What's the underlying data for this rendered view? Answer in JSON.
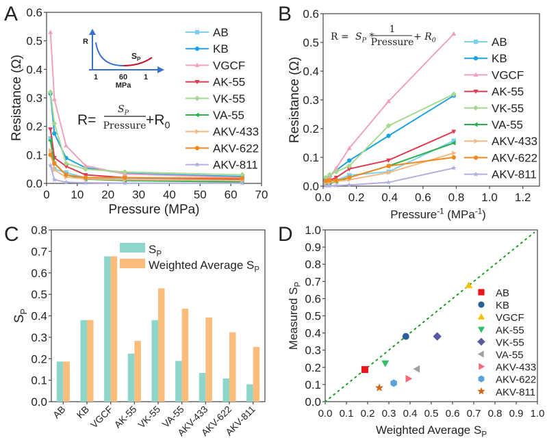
{
  "chart_data": [
    {
      "panel": "A",
      "type": "line",
      "title": "",
      "xlabel": "Pressure (MPa)",
      "ylabel": "Resistance (Ω)",
      "xlim": [
        0,
        70
      ],
      "ylim": [
        0,
        0.6
      ],
      "xticks": [
        0,
        10,
        20,
        30,
        40,
        50,
        60,
        70
      ],
      "yticks": [
        0.0,
        0.1,
        0.2,
        0.3,
        0.4,
        0.5,
        0.6
      ],
      "legend": "right",
      "x": [
        1.27,
        2.55,
        6.37,
        12.7,
        25.5,
        63.7
      ],
      "series": [
        {
          "name": "AB",
          "color": "#7fd0f0",
          "marker": "square",
          "values": [
            0.158,
            0.05,
            0.038,
            0.02,
            0.015,
            0.012
          ]
        },
        {
          "name": "KB",
          "color": "#1aa3e0",
          "marker": "circle",
          "values": [
            0.315,
            0.175,
            0.089,
            0.055,
            0.035,
            0.024
          ]
        },
        {
          "name": "VGCF",
          "color": "#f0a0c0",
          "marker": "triangle-up",
          "values": [
            0.53,
            0.295,
            0.132,
            0.062,
            0.033,
            0.02
          ]
        },
        {
          "name": "AK-55",
          "color": "#e03a50",
          "marker": "triangle-down",
          "values": [
            0.19,
            0.09,
            0.06,
            0.03,
            0.02,
            0.015
          ]
        },
        {
          "name": "VK-55",
          "color": "#a8d890",
          "marker": "diamond",
          "values": [
            0.32,
            0.21,
            0.07,
            0.05,
            0.04,
            0.03
          ]
        },
        {
          "name": "VA-55",
          "color": "#2ab04a",
          "marker": "triangle-left",
          "values": [
            0.15,
            0.07,
            0.03,
            0.015,
            0.01,
            0.005
          ]
        },
        {
          "name": "AKV-433",
          "color": "#f4b880",
          "marker": "triangle-right",
          "values": [
            0.115,
            0.047,
            0.022,
            0.016,
            0.013,
            0.01
          ]
        },
        {
          "name": "AKV-622",
          "color": "#f08a20",
          "marker": "circle",
          "values": [
            0.1,
            0.07,
            0.03,
            0.02,
            0.02,
            0.018
          ]
        },
        {
          "name": "AKV-811",
          "color": "#b0b0e0",
          "marker": "star",
          "values": [
            0.063,
            0.013,
            0.004,
            0.002,
            0.001,
            0.001
          ]
        }
      ],
      "annotations": {
        "inset": {
          "y_label": "R",
          "x_ticks": [
            "1",
            "60",
            "1"
          ],
          "x_label": "MPa",
          "curve_label": "S",
          "curve_label_sub": "P"
        },
        "equation": {
          "lhs": "R=",
          "numerator": "S",
          "numerator_sub": "P",
          "denominator": "Pressure",
          "rhs": "+R",
          "rhs_sub": "0"
        }
      }
    },
    {
      "panel": "B",
      "type": "line",
      "title": "",
      "xlabel": "Pressure",
      "xlabel_sup": "-1",
      "xlabel_unit": " (MPa",
      "xlabel_unit_sup": "-1",
      "xlabel_close": ")",
      "ylabel": "Resistance (Ω)",
      "xlim": [
        0,
        1.3
      ],
      "ylim": [
        0,
        0.6
      ],
      "xticks": [
        0.0,
        0.2,
        0.4,
        0.6,
        0.8,
        1.0,
        1.2
      ],
      "yticks": [
        0.0,
        0.1,
        0.2,
        0.3,
        0.4,
        0.5,
        0.6
      ],
      "legend": "right",
      "x": [
        0.0157,
        0.0393,
        0.0785,
        0.157,
        0.393,
        0.785
      ],
      "series": [
        {
          "name": "AB",
          "color": "#7fd0f0",
          "marker": "square",
          "values": [
            0.012,
            0.015,
            0.02,
            0.038,
            0.05,
            0.158
          ]
        },
        {
          "name": "KB",
          "color": "#1aa3e0",
          "marker": "circle",
          "values": [
            0.024,
            0.035,
            0.055,
            0.089,
            0.175,
            0.315
          ]
        },
        {
          "name": "VGCF",
          "color": "#f0a0c0",
          "marker": "triangle-up",
          "values": [
            0.02,
            0.033,
            0.062,
            0.132,
            0.295,
            0.53
          ]
        },
        {
          "name": "AK-55",
          "color": "#e03a50",
          "marker": "triangle-down",
          "values": [
            0.015,
            0.02,
            0.03,
            0.06,
            0.09,
            0.19
          ]
        },
        {
          "name": "VK-55",
          "color": "#a8d890",
          "marker": "diamond",
          "values": [
            0.03,
            0.04,
            0.05,
            0.07,
            0.21,
            0.32
          ]
        },
        {
          "name": "VA-55",
          "color": "#2ab04a",
          "marker": "triangle-left",
          "values": [
            0.005,
            0.01,
            0.015,
            0.03,
            0.07,
            0.15
          ]
        },
        {
          "name": "AKV-433",
          "color": "#f4b880",
          "marker": "triangle-right",
          "values": [
            0.01,
            0.013,
            0.016,
            0.022,
            0.047,
            0.115
          ]
        },
        {
          "name": "AKV-622",
          "color": "#f08a20",
          "marker": "circle",
          "values": [
            0.018,
            0.02,
            0.02,
            0.03,
            0.07,
            0.1
          ]
        },
        {
          "name": "AKV-811",
          "color": "#b0b0e0",
          "marker": "star",
          "values": [
            0.001,
            0.001,
            0.002,
            0.004,
            0.013,
            0.063
          ]
        }
      ],
      "annotations": {
        "equation": {
          "lhs": "R = ",
          "sp": "S",
          "sp_sub": "P",
          "times": " * ",
          "numerator": "1",
          "denominator": "Pressure",
          "rhs": " + R",
          "rhs_sub": "0"
        }
      }
    },
    {
      "panel": "C",
      "type": "bar",
      "title": "",
      "xlabel": "",
      "ylabel": "S",
      "ylabel_sub": "P",
      "ylim": [
        0,
        0.8
      ],
      "yticks": [
        0.0,
        0.1,
        0.2,
        0.3,
        0.4,
        0.5,
        0.6,
        0.7,
        0.8
      ],
      "legend": "top-center",
      "categories": [
        "AB",
        "KB",
        "VGCF",
        "AK-55",
        "VK-55",
        "VA-55",
        "AKV-433",
        "AKV-622",
        "AKV-811"
      ],
      "series": [
        {
          "name": "S",
          "name_sub": "P",
          "color": "#8ed6cc",
          "values": [
            0.187,
            0.38,
            0.677,
            0.224,
            0.38,
            0.19,
            0.134,
            0.108,
            0.081
          ]
        },
        {
          "name": "Weighted Average S",
          "name_sub": "P",
          "color": "#fcbd7c",
          "values": [
            0.187,
            0.38,
            0.677,
            0.283,
            0.528,
            0.433,
            0.392,
            0.323,
            0.255
          ]
        }
      ]
    },
    {
      "panel": "D",
      "type": "scatter",
      "title": "",
      "xlabel": "Weighted Average S",
      "xlabel_sub": "P",
      "ylabel": "Measured S",
      "ylabel_sub": "P",
      "xlim": [
        0,
        1.0
      ],
      "ylim": [
        0,
        1.0
      ],
      "xticks": [
        0.0,
        0.1,
        0.2,
        0.3,
        0.4,
        0.5,
        0.6,
        0.7,
        0.8,
        0.9,
        1.0
      ],
      "yticks": [
        0.0,
        0.1,
        0.2,
        0.3,
        0.4,
        0.5,
        0.6,
        0.7,
        0.8,
        0.9,
        1.0
      ],
      "legend": "bottom-right",
      "reference_line": {
        "type": "y=x",
        "color": "#1a9a1a",
        "style": "dotted"
      },
      "points": [
        {
          "name": "AB",
          "color": "#e8151c",
          "marker": "square",
          "x": 0.187,
          "y": 0.187
        },
        {
          "name": "KB",
          "color": "#2a5f98",
          "marker": "circle",
          "x": 0.38,
          "y": 0.38
        },
        {
          "name": "VGCF",
          "color": "#f6c200",
          "marker": "triangle-up",
          "x": 0.677,
          "y": 0.677
        },
        {
          "name": "AK-55",
          "color": "#2fbf6a",
          "marker": "triangle-down",
          "x": 0.283,
          "y": 0.224
        },
        {
          "name": "VK-55",
          "color": "#5a5aa0",
          "marker": "diamond",
          "x": 0.528,
          "y": 0.38
        },
        {
          "name": "VA-55",
          "color": "#a0a0a0",
          "marker": "triangle-left",
          "x": 0.433,
          "y": 0.19
        },
        {
          "name": "AKV-433",
          "color": "#f46a7a",
          "marker": "triangle-right",
          "x": 0.392,
          "y": 0.134
        },
        {
          "name": "AKV-622",
          "color": "#5fa0d8",
          "marker": "hexagon",
          "x": 0.323,
          "y": 0.108
        },
        {
          "name": "AKV-811",
          "color": "#cc6a1a",
          "marker": "star",
          "x": 0.255,
          "y": 0.081
        }
      ]
    }
  ],
  "panel_labels": [
    "A",
    "B",
    "C",
    "D"
  ]
}
